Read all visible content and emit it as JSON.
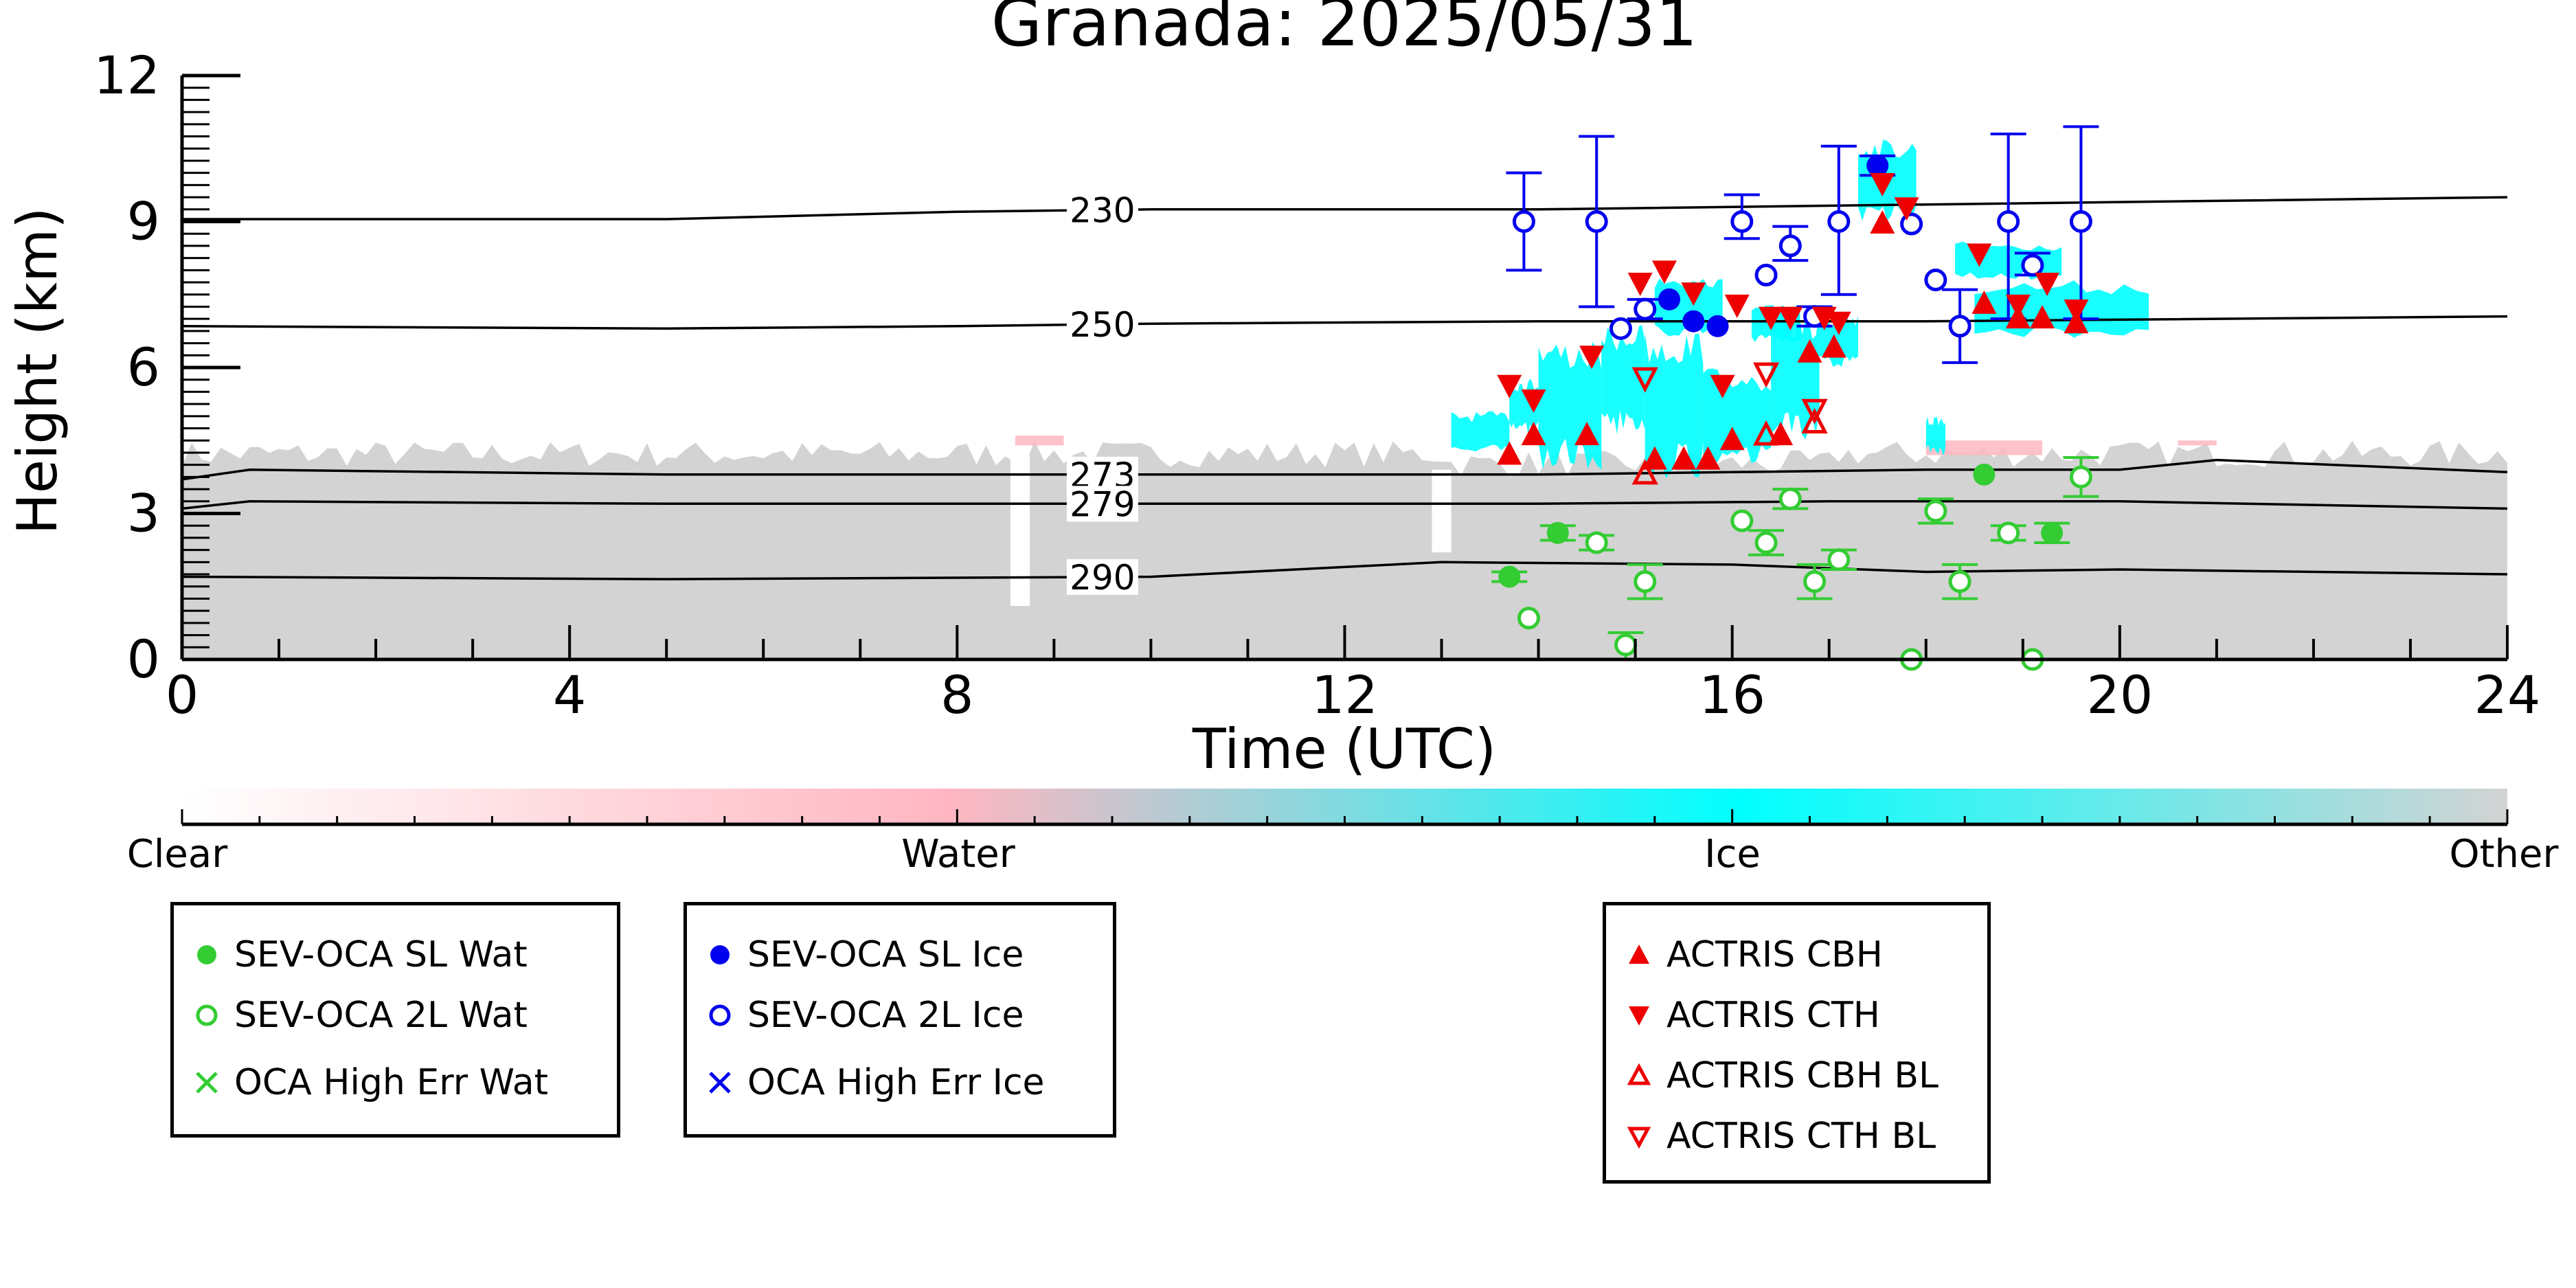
{
  "chart_data": {
    "type": "scatter",
    "title": "Granada: 2025/05/31",
    "xlabel": "Time (UTC)",
    "ylabel": "Height (km)",
    "xlim": [
      0,
      24
    ],
    "ylim": [
      0,
      12
    ],
    "xticks": [
      0,
      4,
      8,
      12,
      16,
      20,
      24
    ],
    "yticks": [
      0,
      3,
      6,
      9,
      12
    ],
    "grid": false,
    "temperature_contours": [
      {
        "label": "230",
        "points": [
          [
            0,
            9.05
          ],
          [
            5,
            9.05
          ],
          [
            8,
            9.2
          ],
          [
            10,
            9.25
          ],
          [
            14,
            9.25
          ],
          [
            18,
            9.35
          ],
          [
            24,
            9.5
          ]
        ]
      },
      {
        "label": "250",
        "points": [
          [
            0,
            6.85
          ],
          [
            5,
            6.8
          ],
          [
            8,
            6.85
          ],
          [
            10,
            6.9
          ],
          [
            14,
            6.95
          ],
          [
            18,
            6.95
          ],
          [
            24,
            7.05
          ]
        ]
      },
      {
        "label": "273",
        "points": [
          [
            0,
            3.7
          ],
          [
            0.7,
            3.9
          ],
          [
            5,
            3.8
          ],
          [
            8,
            3.8
          ],
          [
            10,
            3.8
          ],
          [
            14,
            3.8
          ],
          [
            18,
            3.9
          ],
          [
            20,
            3.9
          ],
          [
            21,
            4.1
          ],
          [
            24,
            3.85
          ]
        ]
      },
      {
        "label": "279",
        "points": [
          [
            0,
            3.1
          ],
          [
            0.7,
            3.25
          ],
          [
            5,
            3.2
          ],
          [
            10,
            3.2
          ],
          [
            14,
            3.2
          ],
          [
            17,
            3.25
          ],
          [
            20,
            3.25
          ],
          [
            24,
            3.1
          ]
        ]
      },
      {
        "label": "290",
        "points": [
          [
            0,
            1.7
          ],
          [
            5,
            1.65
          ],
          [
            10,
            1.7
          ],
          [
            12,
            1.9
          ],
          [
            13,
            2.0
          ],
          [
            16,
            1.95
          ],
          [
            18,
            1.8
          ],
          [
            20,
            1.85
          ],
          [
            24,
            1.75
          ]
        ]
      }
    ],
    "colorbar": {
      "labels": [
        "Clear",
        "Water",
        "Ice",
        "Other"
      ],
      "colors": [
        "#ffffff",
        "#ffb6c1",
        "#00ffff",
        "#d3d3d3"
      ]
    },
    "series": [
      {
        "name": "SEV-OCA SL Wat",
        "marker": "filled-circle",
        "color": "#33cc33",
        "points": [
          [
            13.7,
            1.7
          ],
          [
            14.2,
            2.6
          ],
          [
            18.6,
            3.8
          ],
          [
            19.3,
            2.6
          ]
        ]
      },
      {
        "name": "SEV-OCA 2L Wat",
        "marker": "open-circle",
        "color": "#33cc33",
        "points": [
          [
            13.9,
            0.85
          ],
          [
            14.6,
            2.4
          ],
          [
            14.9,
            0.3
          ],
          [
            15.1,
            1.6
          ],
          [
            16.1,
            2.85
          ],
          [
            16.35,
            2.4
          ],
          [
            16.6,
            3.3
          ],
          [
            16.85,
            1.6
          ],
          [
            17.1,
            2.05
          ],
          [
            17.85,
            0.0
          ],
          [
            18.1,
            3.05
          ],
          [
            18.35,
            1.6
          ],
          [
            18.85,
            2.6
          ],
          [
            19.1,
            0.0
          ],
          [
            19.6,
            3.75
          ]
        ]
      },
      {
        "name": "OCA High Err Wat",
        "marker": "x",
        "color": "#33cc33",
        "points": []
      },
      {
        "name": "SEV-OCA SL Ice",
        "marker": "filled-circle",
        "color": "#0000ee",
        "points": [
          [
            15.35,
            7.4
          ],
          [
            15.6,
            6.95
          ],
          [
            15.85,
            6.85
          ],
          [
            17.5,
            10.15
          ]
        ]
      },
      {
        "name": "SEV-OCA 2L Ice",
        "marker": "open-circle",
        "color": "#0000ee",
        "points": [
          [
            13.85,
            9.0
          ],
          [
            14.6,
            9.0
          ],
          [
            14.85,
            6.8
          ],
          [
            15.1,
            7.2
          ],
          [
            16.1,
            9.0
          ],
          [
            16.35,
            7.9
          ],
          [
            16.6,
            8.5
          ],
          [
            16.85,
            7.05
          ],
          [
            17.1,
            9.0
          ],
          [
            17.85,
            8.95
          ],
          [
            18.1,
            7.8
          ],
          [
            18.35,
            6.85
          ],
          [
            18.85,
            9.0
          ],
          [
            19.1,
            8.1
          ],
          [
            19.6,
            9.0
          ]
        ]
      },
      {
        "name": "OCA High Err Ice",
        "marker": "x",
        "color": "#0000ee",
        "points": []
      },
      {
        "name": "ACTRIS CBH",
        "marker": "triangle-up",
        "color": "#ee0000",
        "points": [
          [
            13.7,
            4.2
          ],
          [
            13.95,
            4.6
          ],
          [
            14.5,
            4.6
          ],
          [
            15.2,
            4.1
          ],
          [
            15.5,
            4.1
          ],
          [
            15.75,
            4.1
          ],
          [
            16.0,
            4.5
          ],
          [
            16.5,
            4.6
          ],
          [
            16.8,
            6.3
          ],
          [
            17.05,
            6.4
          ],
          [
            17.55,
            8.95
          ],
          [
            18.6,
            7.3
          ],
          [
            18.95,
            7.0
          ],
          [
            19.2,
            7.0
          ],
          [
            19.55,
            6.9
          ]
        ]
      },
      {
        "name": "ACTRIS CTH",
        "marker": "triangle-down",
        "color": "#ee0000",
        "points": [
          [
            13.7,
            5.65
          ],
          [
            13.95,
            5.35
          ],
          [
            14.55,
            6.25
          ],
          [
            15.05,
            7.75
          ],
          [
            15.3,
            8.0
          ],
          [
            15.6,
            7.55
          ],
          [
            15.9,
            5.65
          ],
          [
            16.05,
            7.3
          ],
          [
            16.4,
            7.05
          ],
          [
            16.6,
            7.05
          ],
          [
            16.95,
            7.05
          ],
          [
            17.1,
            6.95
          ],
          [
            17.55,
            9.8
          ],
          [
            17.8,
            9.3
          ],
          [
            18.55,
            8.35
          ],
          [
            18.95,
            7.3
          ],
          [
            19.25,
            7.75
          ],
          [
            19.55,
            7.2
          ]
        ]
      },
      {
        "name": "ACTRIS CBH BL",
        "marker": "open-triangle-up",
        "color": "#ee0000",
        "points": [
          [
            15.1,
            3.8
          ],
          [
            16.35,
            4.6
          ],
          [
            16.85,
            4.85
          ]
        ]
      },
      {
        "name": "ACTRIS CTH BL",
        "marker": "open-triangle-down",
        "color": "#ee0000",
        "points": [
          [
            15.1,
            5.8
          ],
          [
            16.35,
            5.9
          ],
          [
            16.85,
            5.15
          ]
        ]
      }
    ],
    "error_bars": {
      "ice": [
        [
          13.85,
          8.0,
          10.0
        ],
        [
          14.6,
          7.25,
          10.75
        ],
        [
          15.1,
          7.0,
          7.4
        ],
        [
          16.1,
          8.65,
          9.55
        ],
        [
          16.6,
          8.2,
          8.9
        ],
        [
          16.85,
          6.85,
          7.25
        ],
        [
          17.1,
          7.5,
          10.55
        ],
        [
          17.5,
          9.95,
          10.35
        ],
        [
          18.35,
          6.1,
          7.6
        ],
        [
          18.85,
          7.0,
          10.8
        ],
        [
          19.1,
          7.9,
          8.35
        ],
        [
          19.6,
          7.0,
          10.95
        ]
      ],
      "water": [
        [
          13.7,
          1.6,
          1.8
        ],
        [
          14.2,
          2.45,
          2.75
        ],
        [
          14.6,
          2.25,
          2.55
        ],
        [
          14.9,
          0.0,
          0.55
        ],
        [
          15.1,
          1.25,
          1.95
        ],
        [
          16.35,
          2.15,
          2.65
        ],
        [
          16.6,
          3.1,
          3.5
        ],
        [
          16.85,
          1.25,
          1.95
        ],
        [
          17.1,
          1.85,
          2.25
        ],
        [
          18.1,
          2.8,
          3.3
        ],
        [
          18.35,
          1.25,
          1.95
        ],
        [
          18.85,
          2.45,
          2.75
        ],
        [
          19.3,
          2.4,
          2.8
        ],
        [
          19.6,
          3.35,
          4.15
        ]
      ]
    },
    "cloud_regions": {
      "other_below_km": 4.2,
      "other_top_variable": true,
      "ice_patches": [
        [
          13.1,
          4.2,
          13.7,
          5.1
        ],
        [
          13.7,
          4.6,
          14.0,
          5.8
        ],
        [
          14.0,
          3.9,
          14.65,
          6.6
        ],
        [
          14.65,
          4.6,
          15.1,
          6.9
        ],
        [
          15.1,
          3.7,
          15.7,
          6.8
        ],
        [
          15.7,
          4.0,
          16.4,
          6.0
        ],
        [
          16.4,
          4.5,
          16.9,
          7.2
        ],
        [
          16.9,
          6.0,
          17.3,
          7.1
        ],
        [
          15.2,
          6.6,
          15.9,
          7.9
        ],
        [
          16.2,
          6.5,
          16.7,
          7.3
        ],
        [
          17.3,
          9.0,
          17.9,
          10.7
        ],
        [
          18.5,
          6.6,
          20.3,
          7.8
        ],
        [
          18.3,
          7.8,
          19.4,
          8.6
        ],
        [
          18.0,
          4.2,
          18.2,
          5.0
        ]
      ],
      "water_patches": [
        [
          8.6,
          4.4,
          9.1,
          4.6
        ],
        [
          18.0,
          4.2,
          19.2,
          4.5
        ],
        [
          20.6,
          4.4,
          21.0,
          4.5
        ]
      ]
    }
  },
  "legend_groups": [
    {
      "items": [
        {
          "label": "SEV-OCA SL Wat",
          "marker": "filled-circle",
          "color": "#33cc33"
        },
        {
          "label": "SEV-OCA 2L Wat",
          "marker": "open-circle",
          "color": "#33cc33"
        },
        {
          "label": "OCA High Err Wat",
          "marker": "x",
          "color": "#33cc33"
        }
      ]
    },
    {
      "items": [
        {
          "label": "SEV-OCA SL Ice",
          "marker": "filled-circle",
          "color": "#0000ee"
        },
        {
          "label": "SEV-OCA 2L Ice",
          "marker": "open-circle",
          "color": "#0000ee"
        },
        {
          "label": "OCA High Err Ice",
          "marker": "x",
          "color": "#0000ee"
        }
      ]
    },
    {
      "items": [
        {
          "label": "ACTRIS CBH",
          "marker": "triangle-up",
          "color": "#ee0000"
        },
        {
          "label": "ACTRIS CTH",
          "marker": "triangle-down",
          "color": "#ee0000"
        },
        {
          "label": "ACTRIS CBH BL",
          "marker": "open-triangle-up",
          "color": "#ee0000"
        },
        {
          "label": "ACTRIS CTH BL",
          "marker": "open-triangle-down",
          "color": "#ee0000"
        }
      ]
    }
  ]
}
